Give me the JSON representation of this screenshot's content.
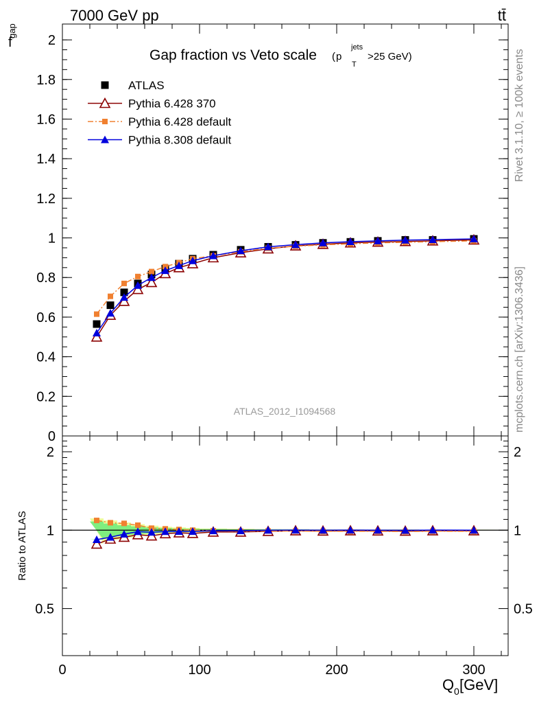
{
  "header": {
    "energy_label": "7000 GeV pp",
    "process_label": "tt̄"
  },
  "side_labels": {
    "rivet": "Rivet 3.1.10, ≥ 100k events",
    "mcplots": "mcplots.cern.ch [arXiv:1306.3436]"
  },
  "chart_data": [
    {
      "id": "main",
      "type": "scatter",
      "title": "Gap fraction vs Veto scale",
      "title_suffix": {
        "p": "p",
        "sup": "jets",
        "sub": "T",
        "rest": ">25 GeV)",
        "open": "("
      },
      "ylabel": {
        "main": "f",
        "sub": "gap"
      },
      "xlim": [
        0,
        325
      ],
      "ylim": [
        0,
        2.08
      ],
      "yticks": [
        "0",
        "0.2",
        "0.4",
        "0.6",
        "0.8",
        "1",
        "1.2",
        "1.4",
        "1.6",
        "1.8",
        "2"
      ],
      "ytick_values": [
        0,
        0.2,
        0.4,
        0.6,
        0.8,
        1.0,
        1.2,
        1.4,
        1.6,
        1.8,
        2.0
      ],
      "analysis_label": "ATLAS_2012_I1094568",
      "legend_position": "top-left",
      "x": [
        25,
        35,
        45,
        55,
        65,
        75,
        85,
        95,
        110,
        130,
        150,
        170,
        190,
        210,
        230,
        250,
        270,
        300
      ],
      "series": [
        {
          "name": "ATLAS",
          "color": "#000000",
          "marker": "square",
          "values": [
            0.565,
            0.66,
            0.725,
            0.77,
            0.815,
            0.845,
            0.87,
            0.895,
            0.915,
            0.94,
            0.955,
            0.965,
            0.975,
            0.98,
            0.985,
            0.99,
            0.99,
            0.995
          ]
        },
        {
          "name": "Pythia 6.428 370",
          "color": "#8b0000",
          "marker": "open-triangle",
          "line": "solid",
          "values": [
            0.5,
            0.61,
            0.68,
            0.74,
            0.775,
            0.82,
            0.85,
            0.87,
            0.9,
            0.925,
            0.945,
            0.96,
            0.968,
            0.975,
            0.979,
            0.982,
            0.985,
            0.99
          ]
        },
        {
          "name": "Pythia 6.428 default",
          "color": "#f08030",
          "marker": "small-square",
          "line": "dashdot",
          "values": [
            0.615,
            0.705,
            0.77,
            0.805,
            0.83,
            0.855,
            0.875,
            0.895,
            0.91,
            0.93,
            0.948,
            0.958,
            0.965,
            0.97,
            0.975,
            0.978,
            0.981,
            0.985
          ]
        },
        {
          "name": "Pythia 8.308 default",
          "color": "#0000dd",
          "marker": "filled-triangle",
          "line": "solid",
          "values": [
            0.52,
            0.62,
            0.7,
            0.76,
            0.8,
            0.835,
            0.86,
            0.885,
            0.91,
            0.935,
            0.955,
            0.966,
            0.975,
            0.981,
            0.985,
            0.989,
            0.991,
            0.995
          ]
        }
      ]
    },
    {
      "id": "ratio",
      "type": "line",
      "ylabel": "Ratio to ATLAS",
      "xlabel": "Q",
      "xlabel_sub": "0",
      "xlabel_unit": " [GeV]",
      "xlim": [
        0,
        325
      ],
      "ylim": [
        0.33,
        2.3
      ],
      "xticks": [
        "0",
        "100",
        "200",
        "300"
      ],
      "xtick_values": [
        0,
        100,
        200,
        300
      ],
      "yticks": [
        "0.5",
        "1",
        "2"
      ],
      "ytick_values": [
        0.5,
        1,
        2
      ],
      "band": {
        "color": "#7fee7f",
        "values_low": [
          0.92,
          0.94,
          0.955,
          0.965,
          0.975,
          0.98,
          0.985,
          0.988,
          0.99,
          0.992,
          0.993,
          0.994,
          0.995,
          0.995,
          0.996,
          0.996,
          0.996,
          0.997
        ],
        "values_high": [
          1.08,
          1.06,
          1.045,
          1.035,
          1.025,
          1.02,
          1.015,
          1.012,
          1.01,
          1.008,
          1.007,
          1.006,
          1.005,
          1.005,
          1.004,
          1.004,
          1.004,
          1.003
        ]
      },
      "band_outer": {
        "color": "#eefc9a",
        "values_low": [
          0.89,
          0.91,
          0.93,
          0.945,
          0.96,
          0.97,
          0.975,
          0.98,
          0.985,
          0.988,
          0.99,
          0.991,
          0.992,
          0.993,
          0.994,
          0.994,
          0.995,
          0.995
        ],
        "values_high": [
          1.11,
          1.09,
          1.07,
          1.055,
          1.04,
          1.03,
          1.025,
          1.02,
          1.015,
          1.012,
          1.01,
          1.009,
          1.008,
          1.007,
          1.006,
          1.006,
          1.005,
          1.005
        ]
      },
      "series": [
        {
          "name": "Pythia 6.428 370",
          "color": "#8b0000",
          "marker": "open-triangle",
          "line": "solid",
          "values": [
            0.885,
            0.925,
            0.94,
            0.961,
            0.951,
            0.97,
            0.977,
            0.972,
            0.984,
            0.984,
            0.99,
            0.995,
            0.993,
            0.995,
            0.994,
            0.992,
            0.995,
            0.995
          ]
        },
        {
          "name": "Pythia 6.428 default",
          "color": "#f08030",
          "marker": "small-square",
          "line": "dashdot",
          "values": [
            1.09,
            1.068,
            1.062,
            1.045,
            1.018,
            1.012,
            1.006,
            1.0,
            0.995,
            0.99,
            0.993,
            0.993,
            0.99,
            0.99,
            0.99,
            0.988,
            0.991,
            0.99
          ]
        },
        {
          "name": "Pythia 8.308 default",
          "color": "#0000dd",
          "marker": "filled-triangle",
          "line": "solid",
          "values": [
            0.92,
            0.94,
            0.966,
            0.987,
            0.982,
            0.988,
            0.989,
            0.989,
            0.995,
            0.995,
            1.0,
            1.001,
            1.0,
            1.001,
            1.0,
            0.999,
            1.001,
            1.0
          ]
        }
      ]
    }
  ]
}
